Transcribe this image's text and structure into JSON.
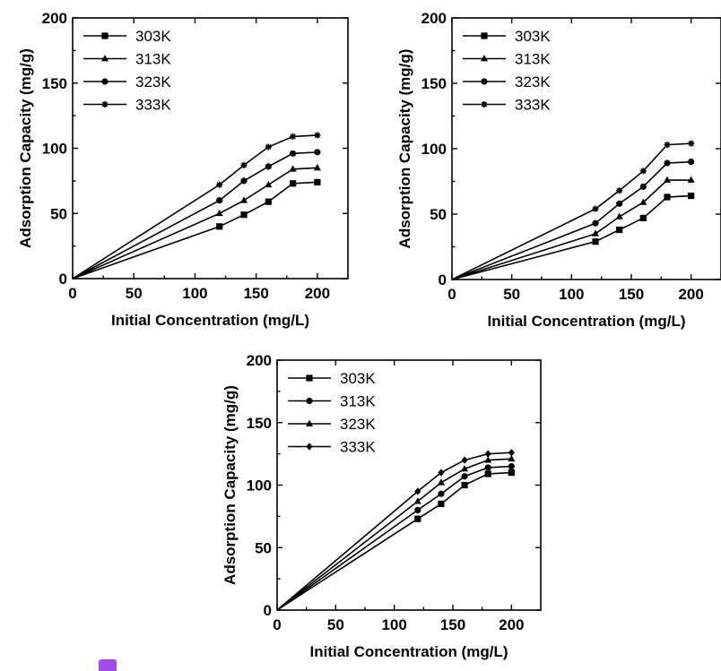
{
  "charts": [
    {
      "chart_data": {
        "type": "line",
        "xlabel": "Initial Concentration (mg/L)",
        "ylabel": "Adsorption Capacity (mg/g)",
        "xlim": [
          0,
          225
        ],
        "ylim": [
          0,
          200
        ],
        "xticks": [
          "0",
          "50",
          "100",
          "150",
          "200"
        ],
        "yticks": [
          "0",
          "50",
          "100",
          "150",
          "200"
        ],
        "legend_position": "top-left",
        "grid": false,
        "x": [
          0,
          120,
          140,
          160,
          180,
          200
        ],
        "series": [
          {
            "name": "303K",
            "marker": "square",
            "values": [
              0,
              40,
              49,
              59,
              73,
              74
            ]
          },
          {
            "name": "313K",
            "marker": "triangle",
            "values": [
              0,
              50,
              60,
              72,
              84,
              85
            ]
          },
          {
            "name": "323K",
            "marker": "circle",
            "values": [
              0,
              60,
              75,
              86,
              96,
              97
            ]
          },
          {
            "name": "333K",
            "marker": "star",
            "values": [
              0,
              72,
              87,
              101,
              109,
              110
            ]
          }
        ]
      }
    },
    {
      "chart_data": {
        "type": "line",
        "xlabel": "Initial Concentration (mg/L)",
        "ylabel": "Adsorption Capacity (mg/g)",
        "xlim": [
          0,
          225
        ],
        "ylim": [
          0,
          200
        ],
        "xticks": [
          "0",
          "50",
          "100",
          "150",
          "200"
        ],
        "yticks": [
          "0",
          "50",
          "100",
          "150",
          "200"
        ],
        "legend_position": "top-left",
        "grid": false,
        "x": [
          0,
          120,
          140,
          160,
          180,
          200
        ],
        "series": [
          {
            "name": "303K",
            "marker": "square",
            "values": [
              0,
              29,
              38,
              47,
              63,
              64
            ]
          },
          {
            "name": "313K",
            "marker": "triangle",
            "values": [
              0,
              35,
              48,
              59,
              76,
              76
            ]
          },
          {
            "name": "323K",
            "marker": "circle",
            "values": [
              0,
              43,
              58,
              71,
              89,
              90
            ]
          },
          {
            "name": "333K",
            "marker": "star",
            "values": [
              0,
              54,
              68,
              83,
              103,
              104
            ]
          }
        ]
      }
    },
    {
      "chart_data": {
        "type": "line",
        "xlabel": "Initial Concentration (mg/L)",
        "ylabel": "Adsorption Capacity (mg/g)",
        "xlim": [
          0,
          225
        ],
        "ylim": [
          0,
          200
        ],
        "xticks": [
          "0",
          "50",
          "100",
          "150",
          "200"
        ],
        "yticks": [
          "0",
          "50",
          "100",
          "150",
          "200"
        ],
        "legend_position": "top-left",
        "grid": false,
        "x": [
          0,
          120,
          140,
          160,
          180,
          200
        ],
        "series": [
          {
            "name": "303K",
            "marker": "square",
            "values": [
              0,
              73,
              85,
              100,
              109,
              110
            ]
          },
          {
            "name": "313K",
            "marker": "circle",
            "values": [
              0,
              80,
              93,
              107,
              114,
              115
            ]
          },
          {
            "name": "323K",
            "marker": "triangle",
            "values": [
              0,
              87,
              102,
              113,
              120,
              121
            ]
          },
          {
            "name": "333K",
            "marker": "diamond",
            "values": [
              0,
              95,
              110,
              120,
              125,
              126
            ]
          }
        ]
      }
    }
  ]
}
